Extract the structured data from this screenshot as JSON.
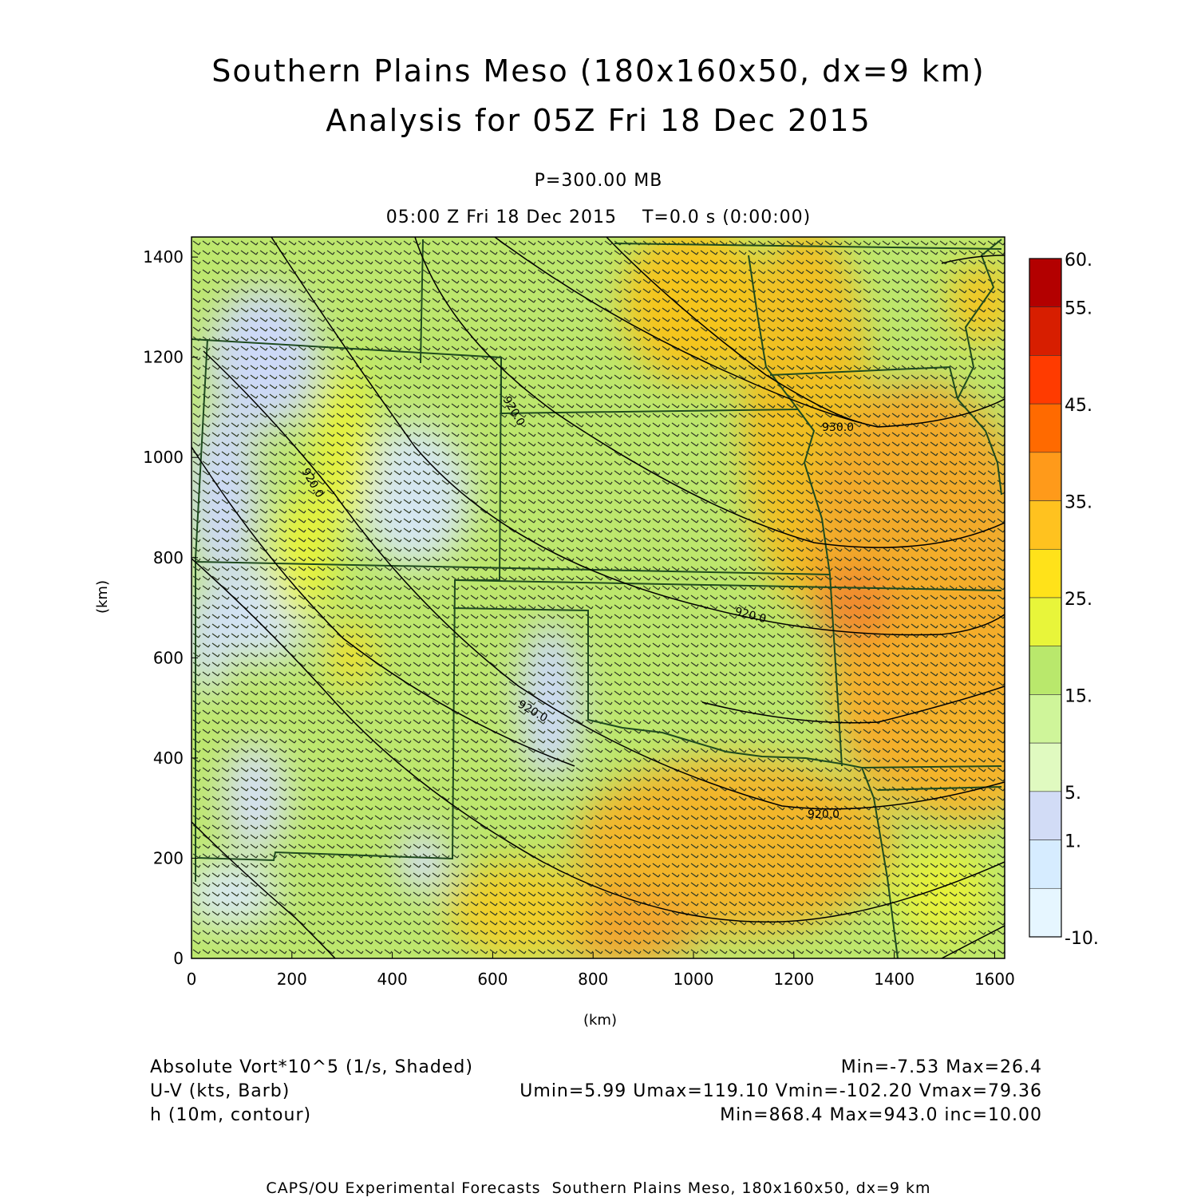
{
  "header": {
    "title_line1": "Southern Plains Meso (180x160x50, dx=9 km)",
    "title_line2": "Analysis for 05Z Fri 18 Dec 2015",
    "level": "P=300.00 MB",
    "time": "05:00 Z Fri 18 Dec 2015    T=0.0 s (0:00:00)"
  },
  "chart_data": {
    "type": "heatmap",
    "description_fields": [
      "Absolute Vort*10^5 (1/s, Shaded)",
      "U-V (kts, Barb)",
      "h (10m, contour)"
    ],
    "x_axis": {
      "label": "(km)",
      "ticks": [
        "0",
        "200",
        "400",
        "600",
        "800",
        "1000",
        "1200",
        "1400",
        "1600"
      ],
      "range": [
        0,
        1620
      ]
    },
    "y_axis": {
      "label": "(km)",
      "ticks": [
        "0",
        "200",
        "400",
        "600",
        "800",
        "1000",
        "1200",
        "1400"
      ],
      "range": [
        0,
        1440
      ]
    },
    "colorbar": {
      "labels": [
        "60.",
        "55.",
        "45.",
        "35.",
        "25.",
        "15.",
        "5.",
        "1.",
        "-10."
      ],
      "colors": [
        "#b30000",
        "#d71e00",
        "#ff3b00",
        "#ff6a00",
        "#ff9a1a",
        "#ffc21f",
        "#ffe21a",
        "#e8f53a",
        "#b9e86c",
        "#cff59a",
        "#e0fac0",
        "#d2dcf6",
        "#d6ecff",
        "#e6f6ff"
      ]
    },
    "contour_labels": [
      "920.0",
      "920.0",
      "930.0",
      "920.0",
      "920.0",
      "920.0"
    ]
  },
  "legend": {
    "left": [
      "Absolute Vort*10^5 (1/s, Shaded)",
      "U-V (kts, Barb)",
      "h (10m, contour)"
    ],
    "right": [
      "Min=-7.53 Max=26.4",
      "Umin=5.99 Umax=119.10 Vmin=-102.20 Vmax=79.36",
      "Min=868.4 Max=943.0 inc=10.00"
    ]
  },
  "footer": "CAPS/OU Experimental Forecasts  Southern Plains Meso, 180x160x50, dx=9 km"
}
